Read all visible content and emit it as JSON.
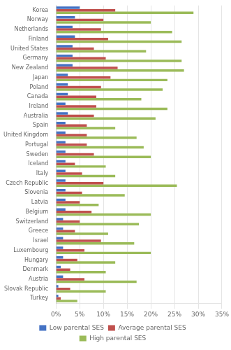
{
  "chart_data": {
    "type": "bar",
    "orientation": "horizontal",
    "categories": [
      "Korea",
      "Norway",
      "Netherlands",
      "Finland",
      "United States",
      "Germany",
      "New Zealand",
      "Japan",
      "Poland",
      "Canada",
      "Ireland",
      "Australia",
      "Spain",
      "United Kingdom",
      "Portugal",
      "Sweden",
      "Iceland",
      "Italy",
      "Czech Republic",
      "Slovenia",
      "Latvia",
      "Belgium",
      "Switzerland",
      "Greece",
      "Israel",
      "Luxembourg",
      "Hungary",
      "Denmark",
      "Austria",
      "Slovak Republic",
      "Turkey"
    ],
    "series": [
      {
        "name": "Low parental SES",
        "color": "#4472C4",
        "values": [
          5.0,
          4.0,
          3.5,
          4.0,
          3.5,
          3.5,
          3.5,
          2.5,
          2.5,
          2.5,
          2.0,
          2.5,
          2.0,
          2.0,
          2.0,
          2.0,
          2.0,
          2.0,
          2.0,
          2.0,
          2.0,
          2.0,
          1.5,
          1.5,
          1.5,
          1.5,
          1.5,
          1.0,
          1.5,
          0.5,
          0.5
        ]
      },
      {
        "name": "Average parental SES",
        "color": "#C0504D",
        "values": [
          12.5,
          10.0,
          9.5,
          11.0,
          8.0,
          10.5,
          13.0,
          11.5,
          9.5,
          8.5,
          8.5,
          8.0,
          6.5,
          6.5,
          6.5,
          8.0,
          4.0,
          5.5,
          10.0,
          5.5,
          5.0,
          7.5,
          5.0,
          4.0,
          9.5,
          6.0,
          4.5,
          3.0,
          6.0,
          3.0,
          1.0
        ]
      },
      {
        "name": "High parental SES",
        "color": "#9BBB59",
        "values": [
          29.0,
          20.0,
          24.5,
          26.5,
          19.0,
          26.5,
          27.0,
          23.5,
          22.5,
          18.0,
          23.5,
          21.0,
          12.5,
          17.0,
          18.5,
          20.0,
          10.5,
          12.5,
          25.5,
          14.5,
          9.0,
          20.0,
          17.5,
          11.0,
          16.5,
          20.0,
          12.5,
          10.5,
          17.0,
          10.5,
          4.5
        ]
      }
    ],
    "xlim": [
      0,
      35
    ],
    "xticks": [
      {
        "value": 0,
        "label": "0%"
      },
      {
        "value": 5,
        "label": "5%"
      },
      {
        "value": 10,
        "label": "10%"
      },
      {
        "value": 15,
        "label": "15%"
      },
      {
        "value": 20,
        "label": "20%"
      },
      {
        "value": 25,
        "label": "25%"
      },
      {
        "value": 30,
        "label": "30%"
      },
      {
        "value": 35,
        "label": "35%"
      }
    ],
    "grid": true,
    "legend": "bottom"
  }
}
